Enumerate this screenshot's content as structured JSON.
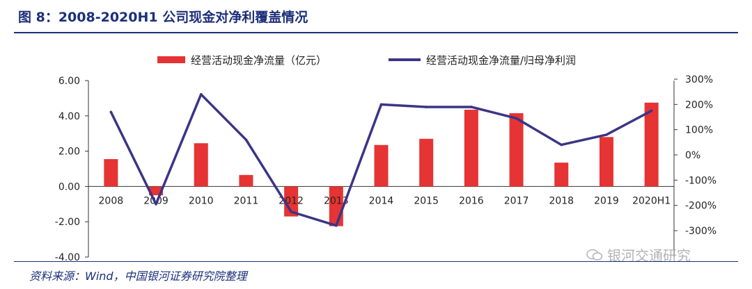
{
  "title": "图 8：2008-2020H1 公司现金对净利覆盖情况",
  "source": "资料来源：Wind，中国银河证券研究院整理",
  "watermark": "银河交通研究",
  "colors": {
    "bar": "#e63333",
    "line": "#3a3585",
    "text": "#1c2f7a",
    "axis": "#333333"
  },
  "chart_data": {
    "type": "bar+line",
    "categories": [
      "2008",
      "2009",
      "2010",
      "2011",
      "2012",
      "2013",
      "2014",
      "2015",
      "2016",
      "2017",
      "2018",
      "2019",
      "2020H1"
    ],
    "series": [
      {
        "name": "经营活动现金净流量（亿元）",
        "type": "bar",
        "axis": "left",
        "values": [
          1.55,
          -0.5,
          2.45,
          0.65,
          -1.7,
          -2.25,
          2.35,
          2.7,
          4.35,
          4.15,
          1.35,
          2.8,
          4.75
        ]
      },
      {
        "name": "经营活动现金净流量/归母净利润",
        "type": "line",
        "axis": "right",
        "values": [
          170,
          -195,
          240,
          60,
          -225,
          -280,
          200,
          190,
          190,
          145,
          40,
          80,
          175
        ]
      }
    ],
    "left_axis": {
      "ylim": [
        -4,
        6
      ],
      "ticks": [
        "6.00",
        "4.00",
        "2.00",
        "0.00",
        "-2.00",
        "-4.00"
      ]
    },
    "right_axis": {
      "ylim": [
        -300,
        300
      ],
      "ticks": [
        "300%",
        "200%",
        "100%",
        "0%",
        "-100%",
        "-200%",
        "-300%"
      ]
    },
    "legend": "top"
  }
}
